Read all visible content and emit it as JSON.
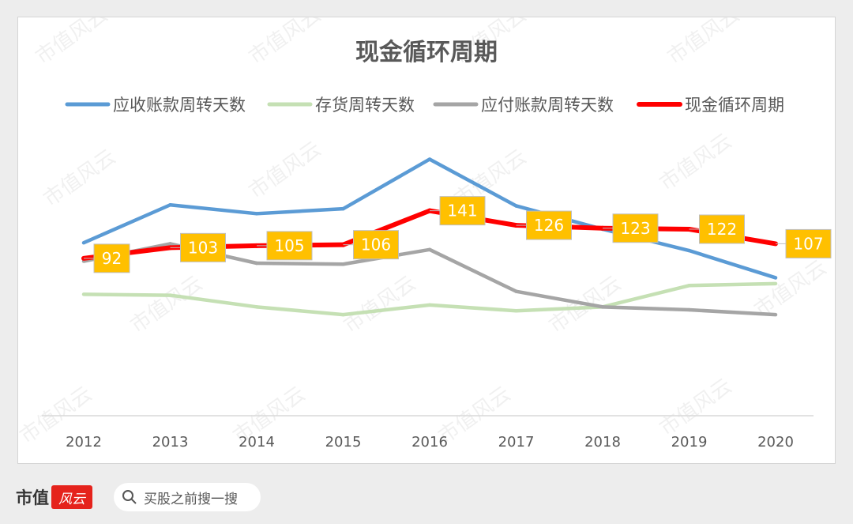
{
  "chart_data": {
    "type": "line",
    "title": "现金循环周期",
    "categories": [
      "2012",
      "2013",
      "2014",
      "2015",
      "2016",
      "2017",
      "2018",
      "2019",
      "2020"
    ],
    "ylim": [
      -70,
      340
    ],
    "grid": false,
    "legend": "top",
    "series": [
      {
        "name": "应收账款周转天数",
        "color": "#5b9bd5",
        "values": [
          108,
          147,
          138,
          143,
          194,
          146,
          122,
          100,
          72
        ]
      },
      {
        "name": "存货周转天数",
        "color": "#c5e0b4",
        "values": [
          55,
          54,
          42,
          34,
          44,
          38,
          42,
          64,
          66
        ]
      },
      {
        "name": "应付账款周转天数",
        "color": "#a5a5a5",
        "values": [
          89,
          107,
          87,
          86,
          101,
          58,
          42,
          39,
          34
        ]
      },
      {
        "name": "现金循环周期",
        "color": "#ff0000",
        "values": [
          92,
          103,
          105,
          106,
          141,
          126,
          123,
          122,
          107
        ]
      }
    ],
    "data_labels": {
      "series": "现金循环周期",
      "values": [
        "92",
        "103",
        "105",
        "106",
        "141",
        "126",
        "123",
        "122",
        "107"
      ]
    }
  },
  "footer": {
    "brand": "市值",
    "brand_seal": "风云",
    "search_placeholder": "买股之前搜一搜"
  },
  "watermark": "市值风云",
  "colors": {
    "label_fill": "#ffc000",
    "axis": "#d9d9d9",
    "text": "#595959"
  }
}
